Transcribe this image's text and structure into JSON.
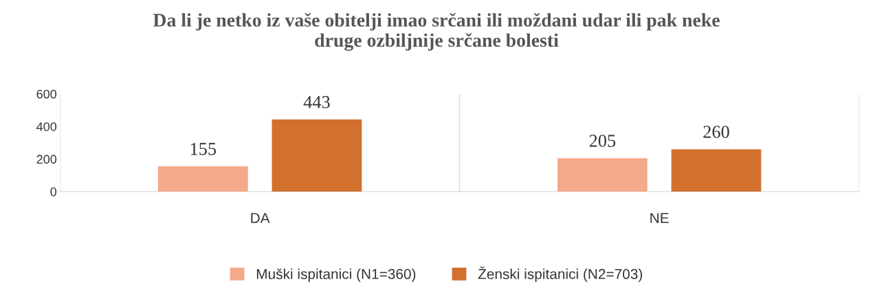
{
  "chart_data": {
    "type": "bar",
    "title": "Da li je netko iz vaše obitelji imao srčani ili moždani udar ili pak neke\ndruge ozbiljnije srčane bolesti",
    "categories": [
      "DA",
      "NE"
    ],
    "series": [
      {
        "name": "Muški ispitanici (N1=360)",
        "color": "#f4a98a",
        "values": [
          155,
          205
        ]
      },
      {
        "name": "Ženski ispitanici (N2=703)",
        "color": "#d2702e",
        "values": [
          443,
          260
        ]
      }
    ],
    "ylim": [
      0,
      600
    ],
    "yticks": [
      0,
      200,
      400,
      600
    ],
    "grid": "x",
    "legend": "bottom",
    "data_labels": true
  }
}
